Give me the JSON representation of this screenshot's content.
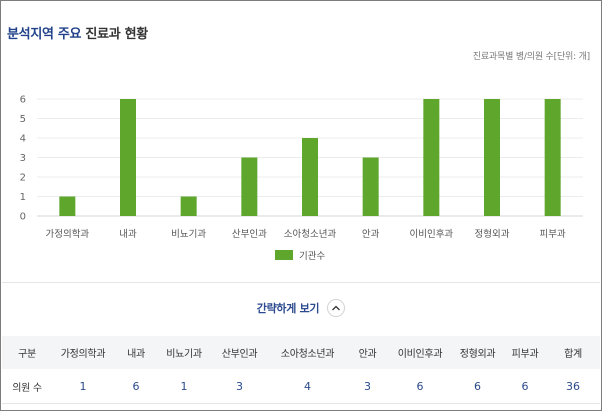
{
  "header": {
    "title_accent": "분석지역 주요",
    "title_rest": "진료과 현황",
    "unit_note": "진료과목별 병/의원 수[단위: 개]"
  },
  "chart_data": {
    "type": "bar",
    "categories": [
      "가정의학과",
      "내과",
      "비뇨기과",
      "산부인과",
      "소아청소년과",
      "안과",
      "이비인후과",
      "정형외과",
      "피부과"
    ],
    "series": [
      {
        "name": "기관수",
        "values": [
          1,
          6,
          1,
          3,
          4,
          3,
          6,
          6,
          6
        ],
        "color": "#5ea62c"
      }
    ],
    "ylim": [
      0,
      6
    ],
    "yticks": [
      0,
      1,
      2,
      3,
      4,
      5,
      6
    ],
    "grid": true,
    "legend": "bottom-center"
  },
  "toggle": {
    "label": "간략하게 보기",
    "icon": "chevron-up-icon"
  },
  "table": {
    "headers": [
      "구분",
      "가정의학과",
      "내과",
      "비뇨기과",
      "산부인과",
      "소아청소년과",
      "안과",
      "이비인후과",
      "정형외과",
      "피부과",
      "합계"
    ],
    "row": [
      "의원 수",
      "1",
      "6",
      "1",
      "3",
      "4",
      "3",
      "6",
      "6",
      "6",
      "36"
    ]
  },
  "colors": {
    "accent": "#21428a",
    "bar": "#5ea62c",
    "grid": "#ececec"
  }
}
